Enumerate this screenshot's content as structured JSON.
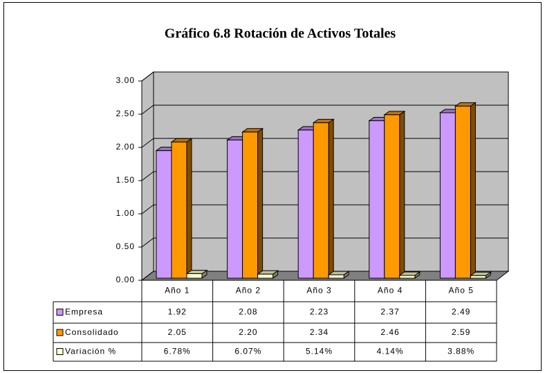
{
  "chart_data": {
    "type": "bar",
    "title": "Gráfico 6.8  Rotación de Activos Totales",
    "categories": [
      "Año 1",
      "Año 2",
      "Año 3",
      "Año 4",
      "Año 5"
    ],
    "series": [
      {
        "name": "Empresa",
        "color": "#cc99ff",
        "values": [
          1.92,
          2.08,
          2.23,
          2.37,
          2.49
        ],
        "value_labels": [
          "1.92",
          "2.08",
          "2.23",
          "2.37",
          "2.49"
        ]
      },
      {
        "name": "Consolidado",
        "color": "#ff9900",
        "values": [
          2.05,
          2.2,
          2.34,
          2.46,
          2.59
        ],
        "value_labels": [
          "2.05",
          "2.20",
          "2.34",
          "2.46",
          "2.59"
        ]
      },
      {
        "name": "Variación %",
        "color": "#ffffcc",
        "values": [
          0.0678,
          0.0607,
          0.0514,
          0.0414,
          0.0388
        ],
        "value_labels": [
          "6.78%",
          "6.07%",
          "5.14%",
          "4.14%",
          "3.88%"
        ]
      }
    ],
    "ylim": [
      0,
      3
    ],
    "yticks": [
      {
        "value": 0,
        "label": "0.00"
      },
      {
        "value": 0.5,
        "label": "0.50"
      },
      {
        "value": 1,
        "label": "1.00"
      },
      {
        "value": 1.5,
        "label": "1.50"
      },
      {
        "value": 2,
        "label": "2.00"
      },
      {
        "value": 2.5,
        "label": "2.50"
      },
      {
        "value": 3,
        "label": "3.00"
      }
    ],
    "grid": true
  }
}
